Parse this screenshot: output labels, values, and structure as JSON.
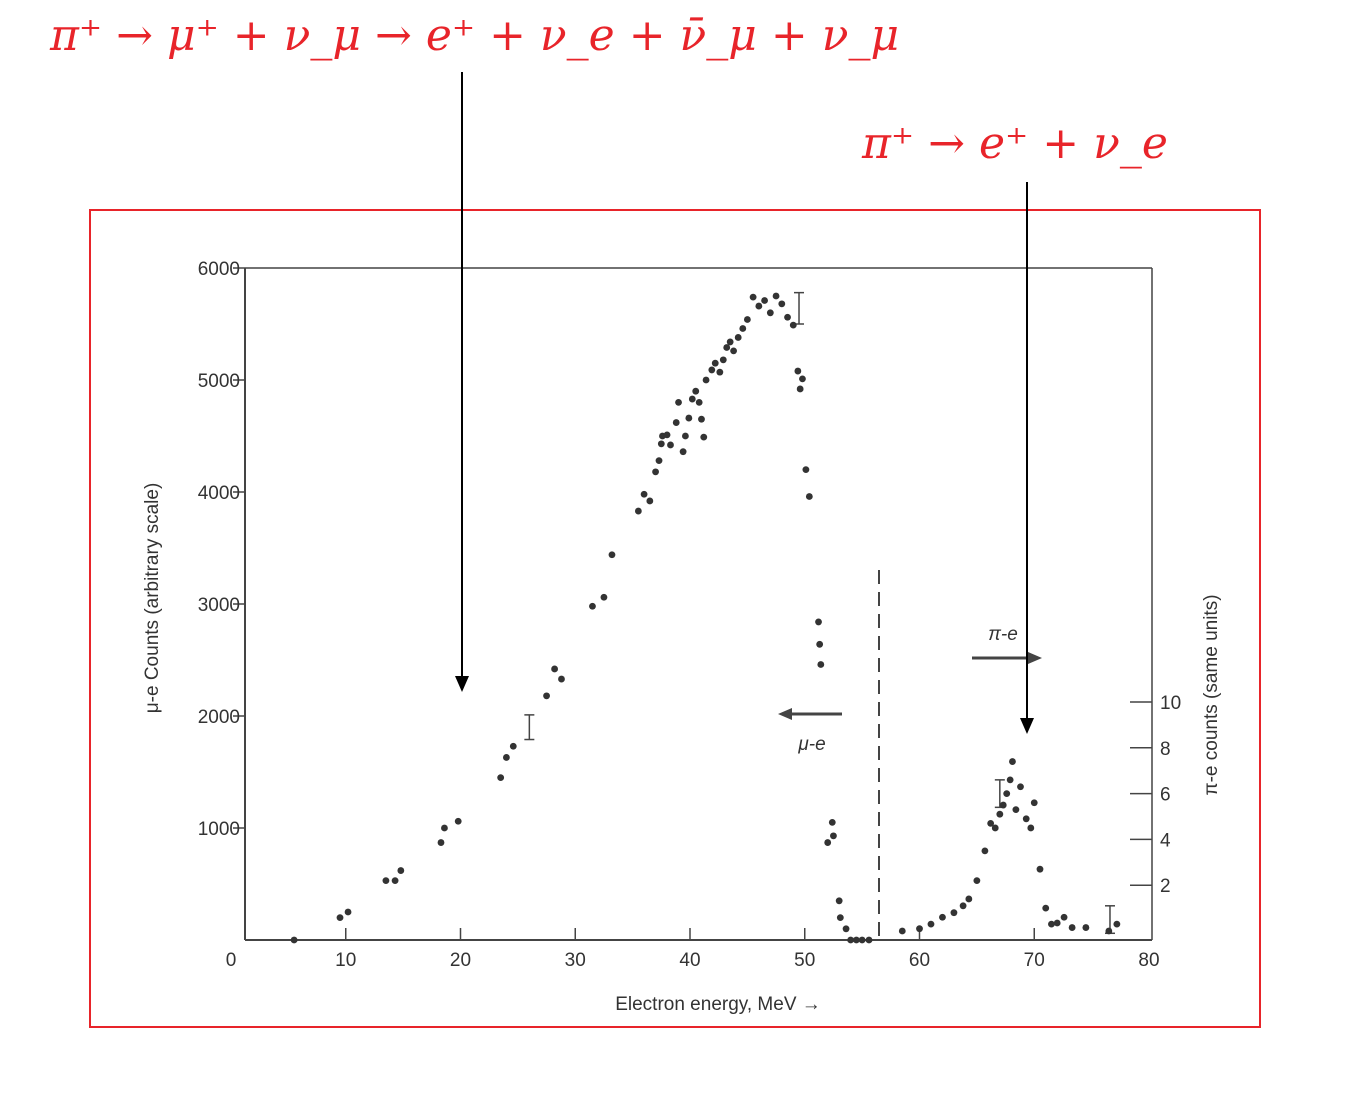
{
  "equations": {
    "main": "π⁺ → μ⁺ + ν_μ → e⁺ + ν_e + ν̄_μ + ν_μ",
    "direct": "π⁺ → e⁺ + ν_e"
  },
  "colors": {
    "annotation": "#e8242a",
    "frame": "#e8242a",
    "points": "#333333",
    "axis": "#444444"
  },
  "chart_data": {
    "type": "scatter",
    "xlabel": "Electron energy, MeV →",
    "ylabel_left": "μ-e Counts (arbitrary scale)",
    "ylabel_right": "π-e counts (same units)",
    "xlim": [
      0,
      80
    ],
    "ylim_left": [
      0,
      6000
    ],
    "ylim_right": [
      0,
      12
    ],
    "x_ticks": [
      "0",
      "10",
      "20",
      "30",
      "40",
      "50",
      "60",
      "70",
      "80"
    ],
    "y_ticks_left": [
      "1000",
      "2000",
      "3000",
      "4000",
      "5000",
      "6000"
    ],
    "y_ticks_right": [
      "2",
      "4",
      "6",
      "8",
      "10"
    ],
    "divider_x": 56,
    "region_labels": {
      "mu_e": "μ-e",
      "pi_e": "π-e"
    },
    "series": [
      {
        "name": "μ-e",
        "axis": "left",
        "points": [
          [
            5.5,
            0
          ],
          [
            9.5,
            200
          ],
          [
            10.2,
            250
          ],
          [
            13.5,
            530
          ],
          [
            14.3,
            530
          ],
          [
            14.8,
            620
          ],
          [
            18.3,
            870
          ],
          [
            18.6,
            1000
          ],
          [
            19.8,
            1060
          ],
          [
            23.5,
            1450
          ],
          [
            24.0,
            1630
          ],
          [
            24.6,
            1730
          ],
          [
            27.5,
            2180
          ],
          [
            28.2,
            2420
          ],
          [
            28.8,
            2330
          ],
          [
            31.5,
            2980
          ],
          [
            32.5,
            3060
          ],
          [
            33.2,
            3440
          ],
          [
            35.5,
            3830
          ],
          [
            36.0,
            3980
          ],
          [
            36.5,
            3920
          ],
          [
            37.0,
            4180
          ],
          [
            37.3,
            4280
          ],
          [
            37.5,
            4430
          ],
          [
            37.6,
            4500
          ],
          [
            38.0,
            4510
          ],
          [
            38.3,
            4420
          ],
          [
            38.8,
            4620
          ],
          [
            39.0,
            4800
          ],
          [
            39.4,
            4360
          ],
          [
            39.6,
            4500
          ],
          [
            39.9,
            4660
          ],
          [
            40.2,
            4830
          ],
          [
            40.5,
            4900
          ],
          [
            40.8,
            4800
          ],
          [
            41.0,
            4650
          ],
          [
            41.2,
            4490
          ],
          [
            41.4,
            5000
          ],
          [
            41.9,
            5090
          ],
          [
            42.2,
            5150
          ],
          [
            42.6,
            5070
          ],
          [
            42.9,
            5180
          ],
          [
            43.2,
            5290
          ],
          [
            43.5,
            5340
          ],
          [
            43.8,
            5260
          ],
          [
            44.2,
            5380
          ],
          [
            44.6,
            5460
          ],
          [
            45.0,
            5540
          ],
          [
            45.5,
            5740
          ],
          [
            46.0,
            5660
          ],
          [
            46.5,
            5710
          ],
          [
            47.0,
            5600
          ],
          [
            47.5,
            5750
          ],
          [
            48.0,
            5680
          ],
          [
            48.5,
            5560
          ],
          [
            49.0,
            5490
          ],
          [
            49.4,
            5080
          ],
          [
            49.6,
            4920
          ],
          [
            49.8,
            5010
          ],
          [
            50.1,
            4200
          ],
          [
            50.4,
            3960
          ],
          [
            51.2,
            2840
          ],
          [
            51.3,
            2640
          ],
          [
            51.4,
            2460
          ],
          [
            52.0,
            870
          ],
          [
            52.4,
            1050
          ],
          [
            52.5,
            930
          ],
          [
            53.0,
            350
          ],
          [
            53.1,
            200
          ],
          [
            53.6,
            100
          ],
          [
            54.0,
            0
          ],
          [
            54.5,
            0
          ],
          [
            55.0,
            0
          ],
          [
            55.6,
            0
          ]
        ]
      },
      {
        "name": "π-e",
        "axis": "right",
        "points": [
          [
            58.5,
            0
          ],
          [
            60.0,
            0.1
          ],
          [
            61.0,
            0.3
          ],
          [
            62.0,
            0.6
          ],
          [
            63.0,
            0.8
          ],
          [
            63.8,
            1.1
          ],
          [
            64.3,
            1.4
          ],
          [
            65.0,
            2.2
          ],
          [
            65.7,
            3.5
          ],
          [
            66.2,
            4.7
          ],
          [
            66.6,
            4.5
          ],
          [
            67.0,
            5.1
          ],
          [
            67.3,
            5.5
          ],
          [
            67.6,
            6.0
          ],
          [
            67.9,
            6.6
          ],
          [
            68.1,
            7.4
          ],
          [
            68.4,
            5.3
          ],
          [
            68.8,
            6.3
          ],
          [
            69.3,
            4.9
          ],
          [
            69.7,
            4.5
          ],
          [
            70.0,
            5.6
          ],
          [
            70.5,
            2.7
          ],
          [
            71.0,
            1.0
          ],
          [
            71.5,
            0.3
          ],
          [
            72.0,
            0.35
          ],
          [
            72.6,
            0.6
          ],
          [
            73.3,
            0.15
          ],
          [
            74.5,
            0.15
          ],
          [
            76.5,
            0
          ],
          [
            77.2,
            0.3
          ]
        ]
      }
    ],
    "error_bars": [
      {
        "axis": "left",
        "x": 26,
        "y": 1900,
        "half": 110
      },
      {
        "axis": "left",
        "x": 49.5,
        "y": 5640,
        "half": 140
      },
      {
        "axis": "right",
        "x": 67,
        "y": 6.0,
        "half": 0.6
      },
      {
        "axis": "right",
        "x": 76.6,
        "y": 0.5,
        "half": 0.6
      }
    ]
  }
}
